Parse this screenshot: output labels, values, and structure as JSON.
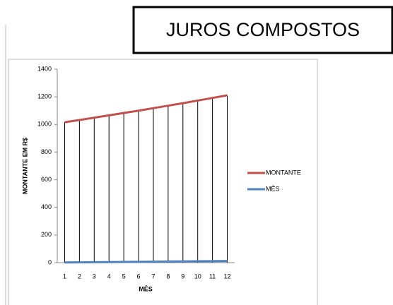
{
  "title": "JUROS COMPOSTOS",
  "chart_data": {
    "type": "line",
    "x_label": "MÊS",
    "y_label": "MONTANTE EM R$",
    "categories": [
      1,
      2,
      3,
      4,
      5,
      6,
      7,
      8,
      9,
      10,
      11,
      12
    ],
    "series": [
      {
        "name": "MONTANTE",
        "color": "#c0504d",
        "values": [
          1016,
          1032,
          1049,
          1066,
          1083,
          1100,
          1118,
          1136,
          1154,
          1173,
          1192,
          1211
        ]
      },
      {
        "name": "MÊS",
        "color": "#4f81bd",
        "values": [
          1,
          2,
          3,
          4,
          5,
          6,
          7,
          8,
          9,
          10,
          11,
          12
        ]
      }
    ],
    "drop_lines": true,
    "ylim": [
      0,
      1400
    ],
    "yticks": [
      0,
      200,
      400,
      600,
      800,
      1000,
      1200,
      1400
    ],
    "legend": "right"
  }
}
